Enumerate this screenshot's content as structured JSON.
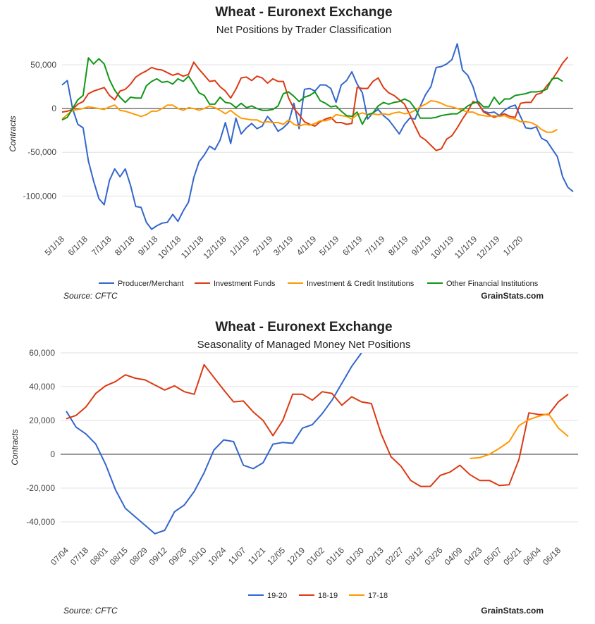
{
  "chart_data": [
    {
      "type": "line",
      "title": "Wheat - Euronext Exchange",
      "subtitle": "Net Positions by Trader Classification",
      "ylabel": "Contracts",
      "ylim": [
        -140000,
        75000
      ],
      "y_ticks": [
        50000,
        0,
        -50000,
        -100000
      ],
      "y_tick_labels": [
        "50,000",
        "0",
        "-50,000",
        "-100,000"
      ],
      "x_tick_labels": [
        "5/1/18",
        "6/1/18",
        "7/1/18",
        "8/1/18",
        "9/1/18",
        "10/1/18",
        "11/1/18",
        "12/1/18",
        "1/1/19",
        "2/1/19",
        "3/1/19",
        "4/1/19",
        "5/1/19",
        "6/1/19",
        "7/1/19",
        "8/1/19",
        "9/1/19",
        "10/1/19",
        "11/1/19",
        "12/1/19",
        "1/1/20"
      ],
      "x_tick_index": [
        0,
        4.4,
        8.9,
        13.3,
        17.7,
        22.1,
        26.4,
        30.7,
        35.1,
        39.5,
        43.4,
        47.8,
        52.1,
        56.5,
        60.8,
        65.2,
        69.6,
        73.9,
        78.3,
        82.6,
        87.0
      ],
      "series": [
        {
          "name": "Producer/Merchant",
          "color": "#3366cc",
          "values": [
            27000,
            32000,
            0,
            -18000,
            -22000,
            -60000,
            -83000,
            -103000,
            -110000,
            -82000,
            -69000,
            -78000,
            -69000,
            -88000,
            -112000,
            -113000,
            -130000,
            -138000,
            -134000,
            -131000,
            -130000,
            -121000,
            -129000,
            -117000,
            -107000,
            -79000,
            -61000,
            -53000,
            -43000,
            -47000,
            -36000,
            -16000,
            -40000,
            -11000,
            -29000,
            -22000,
            -17000,
            -23000,
            -20000,
            -9000,
            -16000,
            -26000,
            -22000,
            -16000,
            6000,
            -23000,
            22000,
            23000,
            20000,
            27000,
            27000,
            23000,
            7000,
            27000,
            32000,
            42000,
            28000,
            18000,
            -12000,
            -5000,
            -1000,
            -8000,
            -13000,
            -21000,
            -29000,
            -18000,
            -11000,
            -12000,
            3000,
            16000,
            25000,
            47000,
            48000,
            51000,
            56000,
            74000,
            44000,
            38000,
            25000,
            5000,
            -3000,
            -5000,
            -4000,
            -8000,
            -2000,
            2000,
            4000,
            -9000,
            -22000,
            -23000,
            -21000,
            -34000,
            -37000,
            -46000,
            -55000,
            -78000,
            -90000,
            -95000
          ]
        },
        {
          "name": "Investment Funds",
          "color": "#dc3912",
          "values": [
            -4000,
            -3000,
            -1000,
            5000,
            8000,
            17000,
            20000,
            22000,
            24000,
            15000,
            10000,
            20000,
            22000,
            28000,
            36000,
            40000,
            43000,
            47000,
            45000,
            44000,
            41000,
            38000,
            40000,
            37000,
            39000,
            53000,
            45000,
            38000,
            31000,
            32000,
            25000,
            20000,
            12000,
            22000,
            35000,
            36000,
            32000,
            37000,
            35000,
            29000,
            34000,
            31000,
            31000,
            12000,
            0,
            -7000,
            -15000,
            -18000,
            -20000,
            -15000,
            -12000,
            -10000,
            -16000,
            -16000,
            -18000,
            -17000,
            24000,
            23000,
            23000,
            31000,
            35000,
            24000,
            18000,
            15000,
            10000,
            5000,
            -7000,
            -20000,
            -32000,
            -36000,
            -42000,
            -48000,
            -46000,
            -35000,
            -31000,
            -22000,
            -12000,
            -3000,
            8000,
            6000,
            -4000,
            -7000,
            -10000,
            -8000,
            -6000,
            -9000,
            -10000,
            6000,
            7000,
            7000,
            16000,
            18000,
            26000,
            33000,
            42000,
            52000,
            59000
          ]
        },
        {
          "name": "Investment & Credit Institutions",
          "color": "#ff9900",
          "values": [
            -12000,
            -7000,
            -2000,
            -1000,
            0,
            2000,
            1000,
            0,
            -1000,
            2000,
            4000,
            -2000,
            -3000,
            -5000,
            -7000,
            -9000,
            -7000,
            -3000,
            -3000,
            0,
            4000,
            4000,
            0,
            -2000,
            1000,
            0,
            -2000,
            0,
            3000,
            1000,
            -2000,
            -6000,
            -2000,
            -7000,
            -11000,
            -12000,
            -13000,
            -13000,
            -16000,
            -15000,
            -16000,
            -16000,
            -18000,
            -13000,
            -18000,
            -20000,
            -18000,
            -19000,
            -17000,
            -14000,
            -14000,
            -12000,
            -7000,
            -8000,
            -9000,
            -12000,
            -7000,
            -5000,
            -7000,
            -6000,
            -7000,
            -6000,
            -7000,
            -5000,
            -4000,
            -6000,
            -5000,
            -2000,
            2000,
            5000,
            9000,
            8000,
            6000,
            3000,
            2000,
            0,
            -2000,
            -4000,
            -4000,
            -7000,
            -8000,
            -9000,
            -8000,
            -9000,
            -8000,
            -11000,
            -12000,
            -15000,
            -15000,
            -16000,
            -19000,
            -24000,
            -27000,
            -27000,
            -24000
          ]
        },
        {
          "name": "Other Financial Institutions",
          "color": "#109618",
          "values": [
            -13000,
            -10000,
            0,
            10000,
            15000,
            58000,
            51000,
            57000,
            51000,
            33000,
            21000,
            13000,
            7000,
            13000,
            12000,
            12000,
            26000,
            31000,
            34000,
            30000,
            31000,
            28000,
            34000,
            31000,
            37000,
            28000,
            18000,
            15000,
            5000,
            5000,
            13000,
            7000,
            6000,
            1000,
            6000,
            1000,
            3000,
            0,
            -2000,
            -2000,
            -1000,
            3000,
            17000,
            19000,
            14000,
            8000,
            13000,
            15000,
            19000,
            9000,
            6000,
            2000,
            3000,
            -3000,
            -8000,
            -9000,
            -4000,
            -18000,
            -7000,
            -5000,
            3000,
            7000,
            5000,
            7000,
            8000,
            11000,
            8000,
            0,
            -11000,
            -11000,
            -11000,
            -10000,
            -8000,
            -7000,
            -6000,
            -6000,
            -2000,
            3000,
            6000,
            8000,
            2000,
            2000,
            13000,
            5000,
            11000,
            11000,
            15000,
            16000,
            17000,
            19000,
            19000,
            20000,
            22000,
            34000,
            35000,
            31000
          ]
        }
      ],
      "legend": [
        "Producer/Merchant",
        "Investment Funds",
        "Investment & Credit Institutions",
        "Other Financial Institutions"
      ],
      "legend_position": "bottom",
      "source": "Source: CFTC",
      "brand": "GrainStats.com"
    },
    {
      "type": "line",
      "title": "Wheat - Euronext Exchange",
      "subtitle": "Seasonality of Managed Money Net Positions",
      "ylabel": "Contracts",
      "ylim": [
        -50000,
        60000
      ],
      "y_ticks": [
        60000,
        40000,
        20000,
        0,
        -20000,
        -40000
      ],
      "y_tick_labels": [
        "60,000",
        "40,000",
        "20,000",
        "0",
        "-20,000",
        "-40,000"
      ],
      "x_tick_labels": [
        "07/04",
        "07/18",
        "08/01",
        "08/15",
        "08/29",
        "09/12",
        "09/26",
        "10/10",
        "10/24",
        "11/07",
        "11/21",
        "12/05",
        "12/19",
        "01/02",
        "01/16",
        "01/30",
        "02/13",
        "02/27",
        "03/12",
        "03/26",
        "04/09",
        "04/23",
        "05/07",
        "05/21",
        "06/04",
        "06/18"
      ],
      "series": [
        {
          "name": "19-20",
          "color": "#3366cc",
          "values": [
            25500,
            16000,
            12000,
            6000,
            -6000,
            -21000,
            -32000,
            -37000,
            -42000,
            -47000,
            -45000,
            -34000,
            -30000,
            -22000,
            -11000,
            2500,
            8500,
            7500,
            -6500,
            -8500,
            -5000,
            6000,
            7000,
            6500,
            15500,
            17500,
            24000,
            32000,
            42000,
            52000,
            60000
          ]
        },
        {
          "name": "18-19",
          "color": "#dc3912",
          "values": [
            21000,
            23000,
            28000,
            36000,
            40500,
            43000,
            47000,
            45000,
            44000,
            41000,
            38000,
            40500,
            37000,
            35500,
            53000,
            45500,
            38000,
            31000,
            31500,
            25000,
            20000,
            11000,
            20000,
            35500,
            35500,
            32000,
            37000,
            36000,
            29000,
            34000,
            31000,
            30000,
            12000,
            -1500,
            -7000,
            -15500,
            -19000,
            -19000,
            -12500,
            -10500,
            -6500,
            -12000,
            -15500,
            -15500,
            -18500,
            -18000,
            -3000,
            24500,
            23500,
            23500,
            31000,
            35500
          ]
        },
        {
          "name": "17-18",
          "color": "#ff9900",
          "values": [
            null,
            null,
            null,
            null,
            null,
            null,
            null,
            null,
            null,
            null,
            null,
            null,
            null,
            null,
            null,
            null,
            null,
            null,
            null,
            null,
            null,
            null,
            null,
            null,
            null,
            null,
            null,
            null,
            null,
            null,
            null,
            null,
            null,
            null,
            null,
            null,
            null,
            null,
            null,
            null,
            null,
            -2500,
            -2000,
            0,
            3500,
            7500,
            17000,
            20500,
            22500,
            24000,
            15500,
            10500
          ]
        }
      ],
      "x_positions_weeks": 52,
      "legend": [
        "19-20",
        "18-19",
        "17-18"
      ],
      "legend_position": "bottom",
      "source": "Source: CFTC",
      "brand": "GrainStats.com"
    }
  ]
}
